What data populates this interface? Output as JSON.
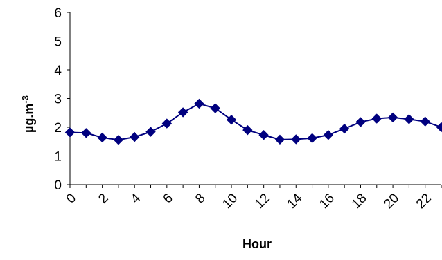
{
  "chart_data": {
    "type": "line",
    "title": "",
    "xlabel": "Hour",
    "ylabel": "µg.m",
    "ylabel_superscript": "-3",
    "xlim": [
      0,
      23
    ],
    "ylim": [
      0,
      6
    ],
    "y_ticks": [
      0,
      1,
      2,
      3,
      4,
      5,
      6
    ],
    "x_tick_labels": [
      "0",
      "2",
      "4",
      "6",
      "8",
      "10",
      "12",
      "14",
      "16",
      "18",
      "20",
      "22"
    ],
    "x_tick_values": [
      0,
      2,
      4,
      6,
      8,
      10,
      12,
      14,
      16,
      18,
      20,
      22
    ],
    "grid": false,
    "legend": "none",
    "marker": "diamond",
    "series": [
      {
        "color": "#00007F",
        "x": [
          0,
          1,
          2,
          3,
          4,
          5,
          6,
          7,
          8,
          9,
          10,
          11,
          12,
          13,
          14,
          15,
          16,
          17,
          18,
          19,
          20,
          21,
          22,
          23
        ],
        "values": [
          1.82,
          1.8,
          1.64,
          1.56,
          1.66,
          1.84,
          2.13,
          2.52,
          2.82,
          2.66,
          2.26,
          1.9,
          1.73,
          1.57,
          1.58,
          1.62,
          1.73,
          1.95,
          2.18,
          2.3,
          2.34,
          2.28,
          2.2,
          2.0
        ]
      }
    ]
  }
}
